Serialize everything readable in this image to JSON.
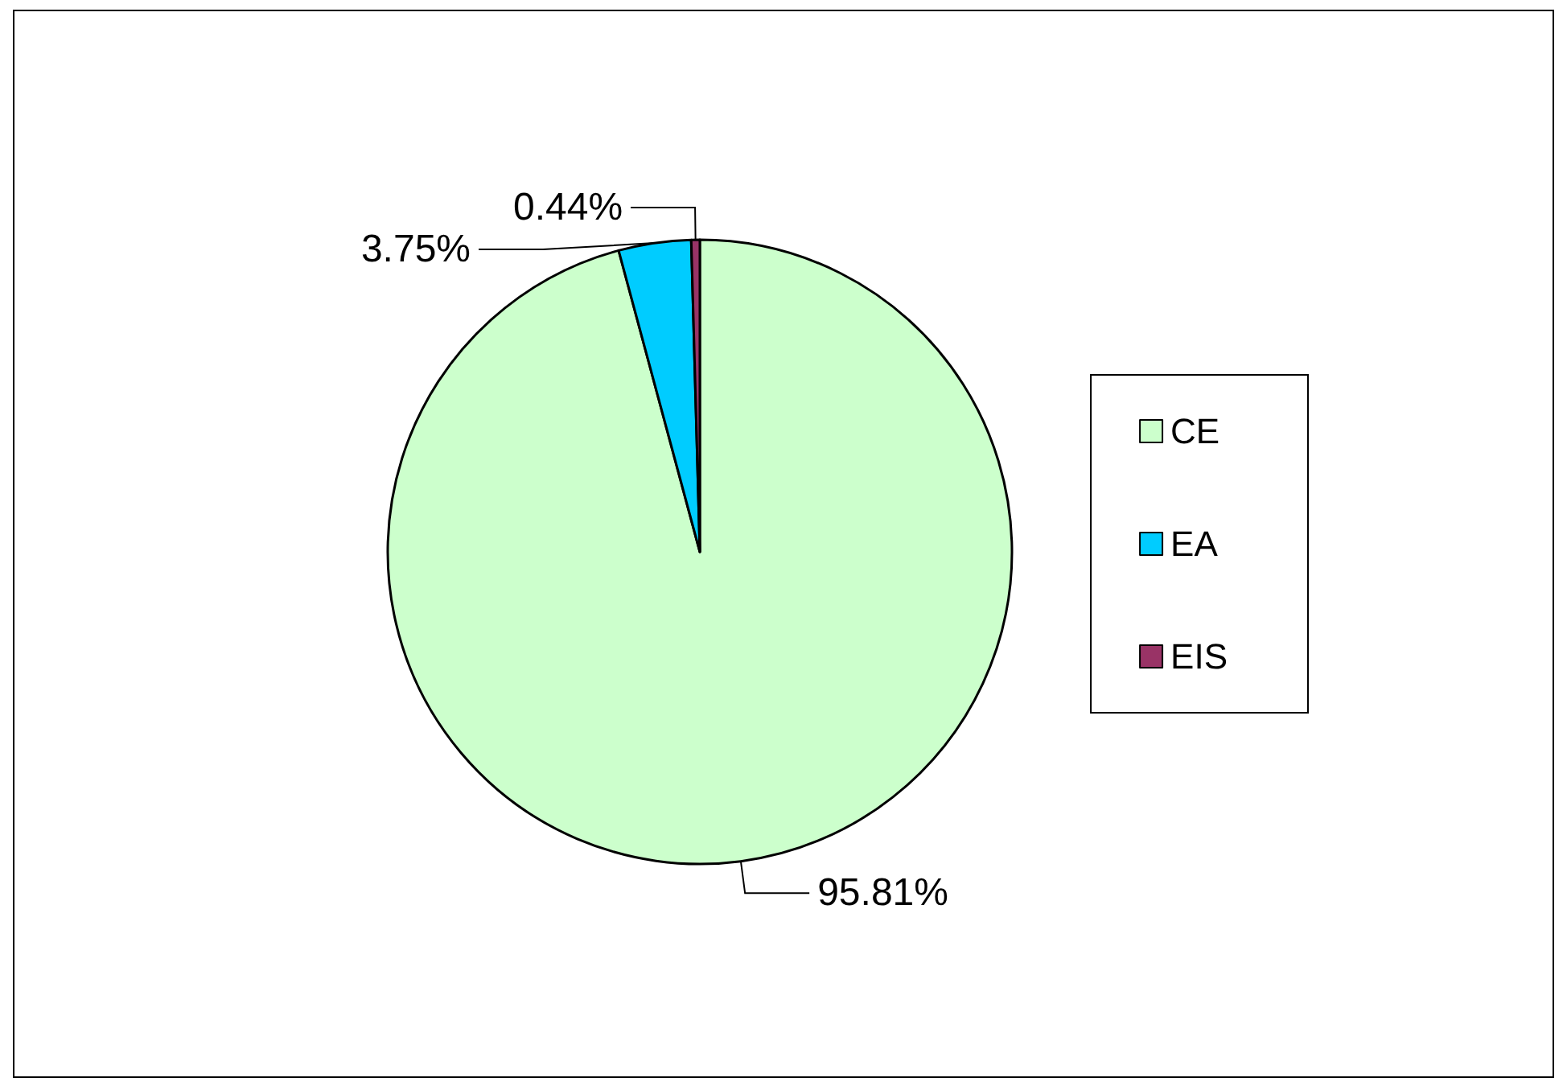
{
  "chart_data": {
    "type": "pie",
    "categories": [
      "CE",
      "EA",
      "EIS"
    ],
    "values": [
      95.81,
      3.75,
      0.44
    ],
    "colors": [
      "#ccffcc",
      "#00ccff",
      "#993366"
    ],
    "value_labels": [
      "95.81%",
      "3.75%",
      "0.44%"
    ],
    "legend": "right"
  }
}
